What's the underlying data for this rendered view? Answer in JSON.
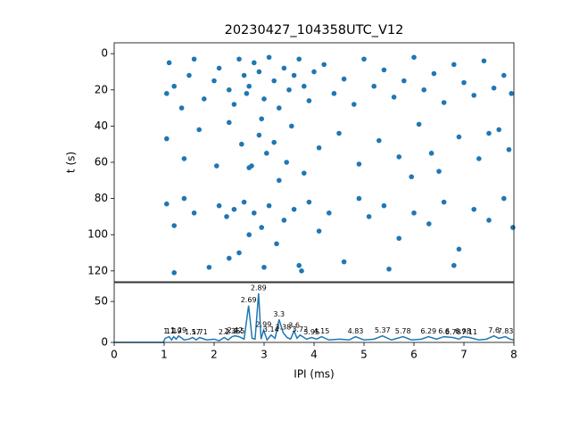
{
  "chart_data": [
    {
      "type": "scatter",
      "title": "20230427_104358UTC_V12",
      "y_label": "t (s)",
      "color": "#1f77b4",
      "xlim": [
        0,
        8
      ],
      "ylim": [
        -6,
        126
      ],
      "y_inverted": true,
      "yticks": [
        0,
        20,
        40,
        60,
        80,
        100,
        120
      ],
      "x": [
        1.05,
        1.1,
        1.2,
        1.35,
        1.5,
        1.6,
        1.8,
        2.0,
        2.1,
        2.3,
        2.4,
        2.5,
        2.6,
        2.65,
        2.7,
        2.8,
        2.9,
        3.0,
        3.1,
        3.2,
        3.3,
        3.4,
        3.5,
        3.6,
        3.7,
        3.8,
        3.9,
        4.0,
        4.2,
        4.4,
        4.6,
        4.8,
        5.0,
        5.2,
        5.4,
        5.6,
        5.8,
        6.0,
        6.2,
        6.4,
        6.6,
        6.8,
        7.0,
        7.2,
        7.4,
        7.6,
        7.8,
        7.95,
        1.05,
        1.4,
        1.7,
        2.05,
        2.3,
        2.55,
        2.7,
        2.9,
        3.05,
        3.3,
        3.55,
        3.8,
        4.1,
        4.5,
        4.9,
        5.3,
        5.7,
        6.1,
        6.5,
        6.9,
        7.3,
        7.7,
        7.9,
        2.75,
        2.95,
        3.2,
        3.45,
        6.35,
        7.5,
        5.95,
        1.05,
        1.2,
        1.4,
        1.6,
        1.9,
        2.1,
        2.25,
        2.4,
        2.5,
        2.6,
        2.7,
        2.8,
        2.95,
        3.1,
        3.25,
        3.4,
        3.6,
        3.75,
        3.9,
        4.1,
        4.3,
        4.6,
        4.9,
        5.1,
        5.4,
        5.7,
        6.0,
        6.3,
        6.6,
        6.9,
        7.2,
        7.5,
        7.8,
        7.98,
        1.2,
        2.3,
        3.0,
        3.7,
        5.5,
        6.8
      ],
      "y": [
        22,
        5,
        18,
        30,
        12,
        3,
        25,
        15,
        8,
        20,
        28,
        3,
        12,
        22,
        18,
        5,
        10,
        25,
        2,
        15,
        30,
        8,
        20,
        12,
        3,
        18,
        26,
        10,
        6,
        22,
        14,
        28,
        3,
        18,
        9,
        24,
        15,
        2,
        20,
        11,
        27,
        6,
        16,
        23,
        4,
        19,
        12,
        22,
        47,
        58,
        42,
        62,
        38,
        50,
        63,
        45,
        55,
        70,
        40,
        66,
        52,
        44,
        61,
        48,
        57,
        39,
        65,
        46,
        58,
        42,
        53,
        62,
        36,
        49,
        60,
        55,
        44,
        68,
        83,
        95,
        80,
        88,
        118,
        84,
        90,
        86,
        110,
        82,
        100,
        88,
        96,
        84,
        105,
        92,
        86,
        120,
        82,
        98,
        88,
        115,
        80,
        90,
        84,
        102,
        88,
        94,
        82,
        108,
        86,
        92,
        80,
        96,
        121,
        113,
        118,
        117,
        119,
        117
      ]
    },
    {
      "type": "line",
      "x_label": "IPI (ms)",
      "color": "#1f77b4",
      "xlim": [
        0,
        8
      ],
      "xticks": [
        0,
        1,
        2,
        3,
        4,
        5,
        6,
        7,
        8
      ],
      "ylim": [
        0,
        73
      ],
      "yticks": [
        0,
        50
      ],
      "x": [
        0,
        0.98,
        1.02,
        1.1,
        1.15,
        1.19,
        1.24,
        1.29,
        1.4,
        1.5,
        1.57,
        1.64,
        1.71,
        1.85,
        2.0,
        2.1,
        2.2,
        2.28,
        2.36,
        2.42,
        2.5,
        2.6,
        2.69,
        2.76,
        2.82,
        2.89,
        2.94,
        2.99,
        3.06,
        3.14,
        3.22,
        3.3,
        3.38,
        3.46,
        3.53,
        3.6,
        3.66,
        3.72,
        3.85,
        3.95,
        4.05,
        4.15,
        4.3,
        4.5,
        4.7,
        4.83,
        5.0,
        5.2,
        5.37,
        5.55,
        5.78,
        5.95,
        6.15,
        6.29,
        6.45,
        6.6,
        6.78,
        6.9,
        6.98,
        7.11,
        7.3,
        7.45,
        7.6,
        7.7,
        7.83,
        7.92,
        8
      ],
      "y": [
        0,
        0,
        5,
        7,
        3,
        7,
        4,
        8,
        3,
        4,
        6,
        3,
        6,
        3,
        4,
        2,
        6,
        3,
        7,
        8,
        7,
        4,
        45,
        5,
        4,
        60,
        4,
        15,
        3,
        9,
        5,
        28,
        12,
        6,
        4,
        14,
        5,
        9,
        4,
        6,
        4,
        7,
        3,
        4,
        3,
        7,
        3,
        4,
        8,
        3,
        7,
        3,
        4,
        7,
        4,
        7,
        6,
        4,
        7,
        6,
        3,
        4,
        8,
        5,
        7,
        4,
        3
      ],
      "peak_labels": [
        1.1,
        1.19,
        1.29,
        1.57,
        1.71,
        2.2,
        2.36,
        2.42,
        2.5,
        2.69,
        2.89,
        2.99,
        3.14,
        3.3,
        3.38,
        3.6,
        3.72,
        3.95,
        4.15,
        4.83,
        5.37,
        5.78,
        6.29,
        6.6,
        6.78,
        6.98,
        7.11,
        7.6,
        7.83
      ]
    }
  ]
}
